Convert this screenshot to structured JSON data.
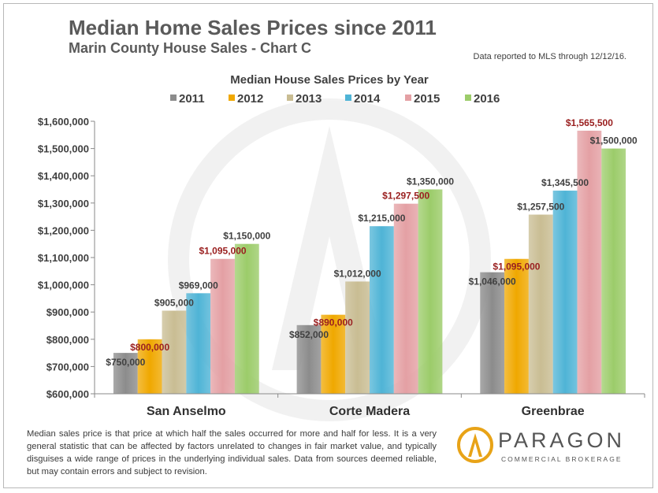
{
  "header": {
    "title": "Median Home Sales Prices since 2011",
    "subtitle": "Marin County House Sales - Chart C",
    "data_note": "Data reported to MLS through 12/12/16."
  },
  "chart_data": {
    "type": "bar",
    "title": "Median House Sales Prices by Year",
    "categories": [
      "San Anselmo",
      "Corte Madera",
      "Greenbrae"
    ],
    "series": [
      {
        "name": "2011",
        "color": "#8c8c8c",
        "values": [
          750000,
          852000,
          1046000
        ],
        "labels": [
          "$750,000",
          "$852,000",
          "$1,046,000"
        ]
      },
      {
        "name": "2012",
        "color": "#f0a800",
        "values": [
          800000,
          890000,
          1095000
        ],
        "labels": [
          "$800,000",
          "$890,000",
          "$1,095,000"
        ]
      },
      {
        "name": "2013",
        "color": "#c9bd93",
        "values": [
          905000,
          1012000,
          1257500
        ],
        "labels": [
          "$905,000",
          "$1,012,000",
          "$1,257,500"
        ]
      },
      {
        "name": "2014",
        "color": "#4fb4d6",
        "values": [
          969000,
          1215000,
          1345500
        ],
        "labels": [
          "$969,000",
          "$1,215,000",
          "$1,345,500"
        ]
      },
      {
        "name": "2015",
        "color": "#e4a0a4",
        "values": [
          1095000,
          1297500,
          1565500
        ],
        "labels": [
          "$1,095,000",
          "$1,297,500",
          "$1,565,500"
        ]
      },
      {
        "name": "2016",
        "color": "#9ccc6a",
        "values": [
          1150000,
          1350000,
          1500000
        ],
        "labels": [
          "$1,150,000",
          "$1,350,000",
          "$1,500,000"
        ]
      }
    ],
    "label_colors": [
      "#404040",
      "#9a2020",
      "#404040",
      "#404040",
      "#9a2020",
      "#404040"
    ],
    "ylim": [
      600000,
      1600000
    ],
    "yticks": [
      600000,
      700000,
      800000,
      900000,
      1000000,
      1100000,
      1200000,
      1300000,
      1400000,
      1500000,
      1600000
    ],
    "ytick_labels": [
      "$600,000",
      "$700,000",
      "$800,000",
      "$900,000",
      "$1,000,000",
      "$1,100,000",
      "$1,200,000",
      "$1,300,000",
      "$1,400,000",
      "$1,500,000",
      "$1,600,000"
    ],
    "legend_position": "top",
    "grid": false
  },
  "footer": {
    "text": "Median sales price is that price at which half the sales occurred for more and half for less. It is a very general statistic that can be affected by factors unrelated to changes in fair market value, and typically disguises a wide range of prices in the underlying individual sales. Data from sources deemed reliable, but may contain errors  and subject to revision."
  },
  "logo": {
    "name": "PARAGON",
    "tagline": "COMMERCIAL BROKERAGE",
    "colors": {
      "gold": "#e8a317",
      "text": "#555555"
    }
  }
}
